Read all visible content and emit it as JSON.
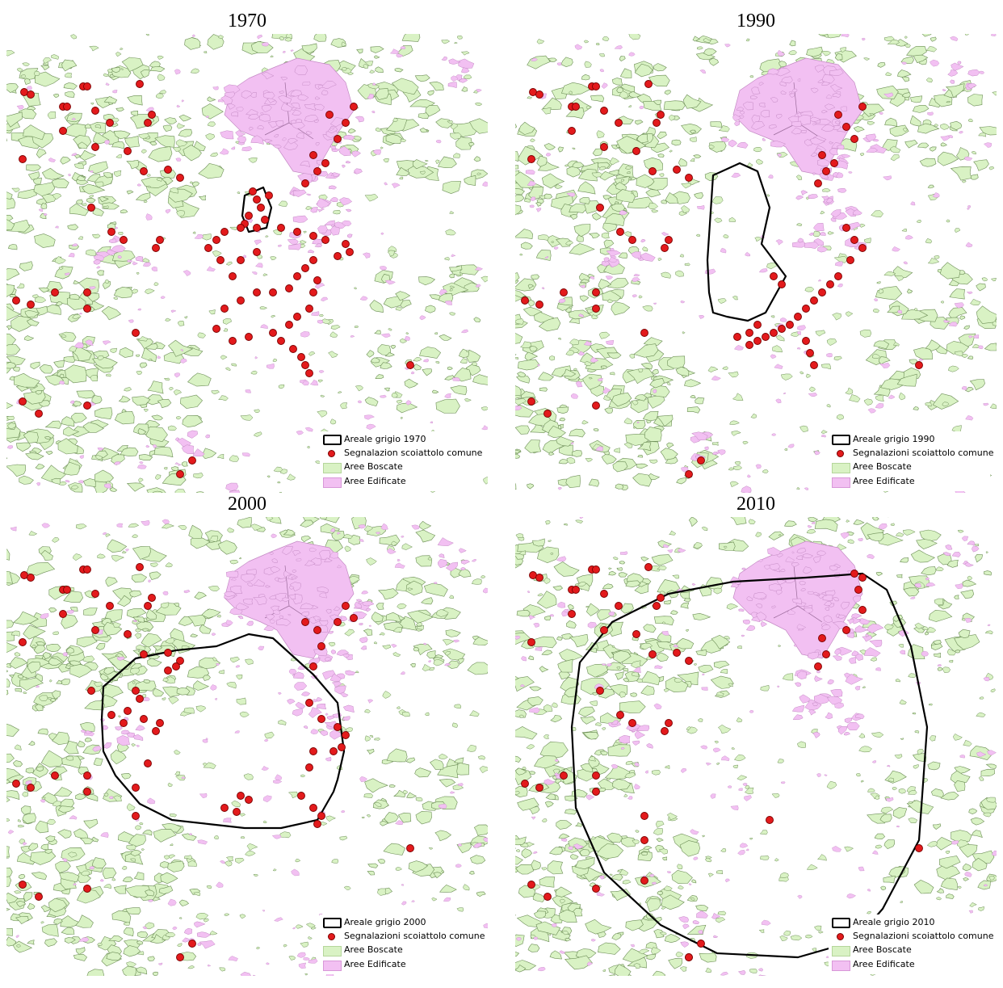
{
  "panels": [
    {
      "year": "1970",
      "legend_area": "Areale grigio 1970",
      "legend_points": "Segnalazion scoiattolo comune",
      "legend_wood": "Aree Boscate",
      "legend_built": "Aree Edificate"
    },
    {
      "year": "1990",
      "legend_area": "Areale grigio 1990",
      "legend_points": "Segnalazioni scoiattolo comune",
      "legend_wood": "Aree Boscate",
      "legend_built": "Aree Edificate"
    },
    {
      "year": "2000",
      "legend_area": "Areale grigio 2000",
      "legend_points": "Segnalazioni scoiattolo comune",
      "legend_wood": "Aree Boscate",
      "legend_built": "Aree Edificate"
    },
    {
      "year": "2010",
      "legend_area": "Areale grigio 2010",
      "legend_points": "Segnalazioni scoiattolo comune",
      "legend_wood": "Aree Boscate",
      "legend_built": "Aree Edificate"
    }
  ],
  "colors": {
    "woodland_fill": "#d9f2c4",
    "woodland_stroke": "#6e8f58",
    "built_fill": "#f2c0f2",
    "built_stroke": "#c48ac4",
    "sighting_fill": "#e31a1c",
    "sighting_stroke": "#7a0000",
    "range_stroke": "#000000"
  }
}
